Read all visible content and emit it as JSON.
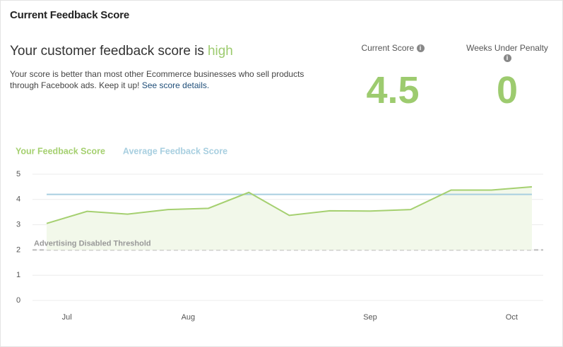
{
  "header": {
    "title": "Current Feedback Score"
  },
  "summary": {
    "headline": "Your customer feedback score is",
    "rating": "high",
    "description": "Your score is better than most other Ecommerce businesses who sell products through Facebook ads. Keep it up!",
    "link": "See score details."
  },
  "metrics": [
    {
      "label": "Current Score",
      "value": 4.5
    },
    {
      "label": "Weeks Under Penalty",
      "value": 0
    }
  ],
  "chart_data": {
    "type": "line",
    "x": [
      0,
      1,
      2,
      3,
      4,
      5,
      6,
      7,
      8,
      9,
      10,
      11,
      12
    ],
    "xlim": [
      -0.35,
      12.28
    ],
    "xticks": [
      {
        "value": 0.5,
        "label": "Jul"
      },
      {
        "value": 3.5,
        "label": "Aug"
      },
      {
        "value": 8,
        "label": "Sep"
      },
      {
        "value": 11.5,
        "label": "Oct"
      }
    ],
    "ylim": [
      0,
      5
    ],
    "yticks": [
      0,
      1,
      2,
      3,
      4,
      5
    ],
    "grid": true,
    "series": [
      {
        "name": "Your Feedback Score",
        "color": "#a5d070",
        "fill": "#f2f8ea",
        "values": [
          3.05,
          3.53,
          3.42,
          3.6,
          3.65,
          4.28,
          3.37,
          3.55,
          3.54,
          3.6,
          4.37,
          4.37,
          4.5
        ]
      },
      {
        "name": "Average Feedback Score",
        "color": "#a8cfe0",
        "values": [
          4.2,
          4.2,
          4.2,
          4.2,
          4.2,
          4.2,
          4.2,
          4.2,
          4.2,
          4.2,
          4.2,
          4.2,
          4.2
        ]
      }
    ],
    "threshold": {
      "label": "Advertising Disabled Threshold",
      "value": 2,
      "color": "#bbbbbb"
    }
  }
}
